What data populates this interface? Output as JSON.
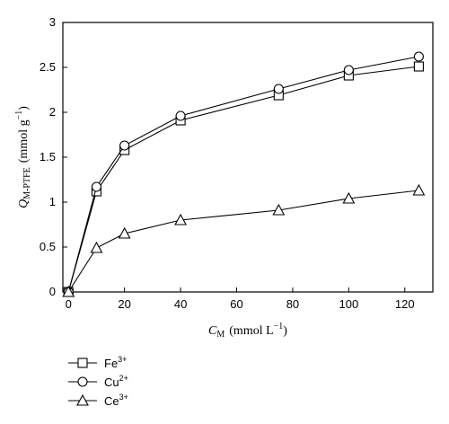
{
  "chart_data": {
    "type": "line",
    "xlabel_main": "C",
    "xlabel_sub": "M",
    "xlabel_unit_open": "(mmol L",
    "xlabel_unit_sup": "−1",
    "xlabel_unit_close": ")",
    "ylabel_main": "Q",
    "ylabel_sub": "M-PTFE",
    "ylabel_unit_open": "(mmol g",
    "ylabel_unit_sup": "−1",
    "ylabel_unit_close": ")",
    "xlim": [
      -2,
      130
    ],
    "ylim": [
      0,
      3
    ],
    "xticks": [
      0,
      20,
      40,
      60,
      80,
      100,
      120
    ],
    "xtick_labels": [
      "0",
      "20",
      "40",
      "60",
      "80",
      "100",
      "120"
    ],
    "yticks": [
      0,
      0.5,
      1,
      1.5,
      2,
      2.5,
      3
    ],
    "ytick_labels": [
      "0",
      "0.5",
      "1",
      "1.5",
      "2",
      "2.5",
      "3"
    ],
    "legend_position": "bottom-left",
    "series": [
      {
        "name": "Fe",
        "charge": "3+",
        "marker": "square",
        "x": [
          0,
          10,
          20,
          40,
          75,
          100,
          125
        ],
        "y": [
          0,
          1.12,
          1.58,
          1.91,
          2.19,
          2.41,
          2.51
        ]
      },
      {
        "name": "Cu",
        "charge": "2+",
        "marker": "circle",
        "x": [
          0,
          10,
          20,
          40,
          75,
          100,
          125
        ],
        "y": [
          0,
          1.17,
          1.63,
          1.96,
          2.26,
          2.47,
          2.62
        ]
      },
      {
        "name": "Ce",
        "charge": "3+",
        "marker": "triangle",
        "x": [
          0,
          10,
          20,
          40,
          75,
          100,
          125
        ],
        "y": [
          0,
          0.49,
          0.65,
          0.8,
          0.91,
          1.04,
          1.13
        ]
      }
    ]
  }
}
